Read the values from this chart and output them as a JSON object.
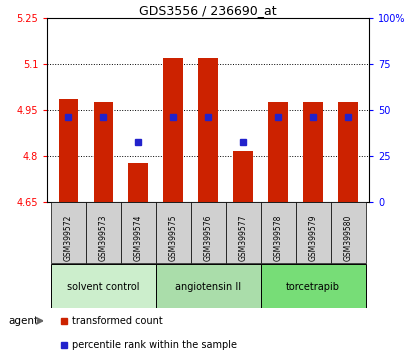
{
  "title": "GDS3556 / 236690_at",
  "samples": [
    "GSM399572",
    "GSM399573",
    "GSM399574",
    "GSM399575",
    "GSM399576",
    "GSM399577",
    "GSM399578",
    "GSM399579",
    "GSM399580"
  ],
  "bar_heights": [
    4.985,
    4.975,
    4.775,
    5.12,
    5.12,
    4.815,
    4.975,
    4.975,
    4.975
  ],
  "base": 4.65,
  "percentile_values": [
    4.925,
    4.925,
    4.845,
    4.925,
    4.925,
    4.845,
    4.925,
    4.925,
    4.925
  ],
  "ylim_left": [
    4.65,
    5.25
  ],
  "ylim_right": [
    0,
    100
  ],
  "yticks_left": [
    4.65,
    4.8,
    4.95,
    5.1,
    5.25
  ],
  "ytick_labels_left": [
    "4.65",
    "4.8",
    "4.95",
    "5.1",
    "5.25"
  ],
  "yticks_right": [
    0,
    25,
    50,
    75,
    100
  ],
  "ytick_labels_right": [
    "0",
    "25",
    "50",
    "75",
    "100%"
  ],
  "bar_color": "#cc2200",
  "dot_color": "#2222cc",
  "groups": [
    {
      "label": "solvent control",
      "indices": [
        0,
        1,
        2
      ],
      "color": "#cceecc"
    },
    {
      "label": "angiotensin II",
      "indices": [
        3,
        4,
        5
      ],
      "color": "#aaddaa"
    },
    {
      "label": "torcetrapib",
      "indices": [
        6,
        7,
        8
      ],
      "color": "#77dd77"
    }
  ],
  "legend_bar_label": "transformed count",
  "legend_dot_label": "percentile rank within the sample",
  "xlabel_agent": "agent",
  "bg_plot": "#ffffff",
  "bg_xticklabels": "#d0d0d0"
}
